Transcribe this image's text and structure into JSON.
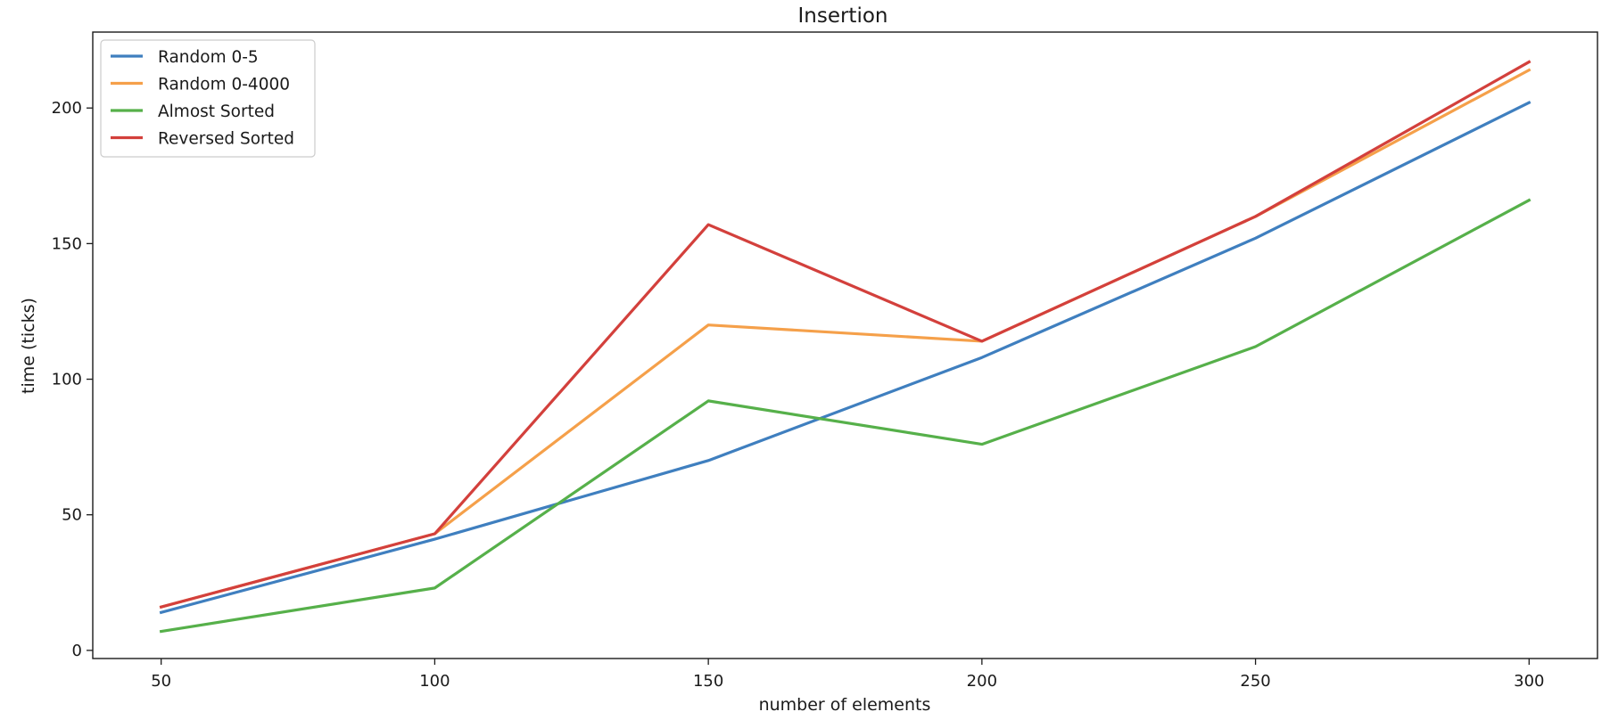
{
  "chart_data": {
    "type": "line",
    "title": "Insertion",
    "xlabel": "number of elements",
    "ylabel": "time (ticks)",
    "x": [
      50,
      100,
      150,
      200,
      250,
      300
    ],
    "xlim": [
      37.5,
      312.5
    ],
    "ylim": [
      -3,
      228
    ],
    "xticks": [
      "50",
      "100",
      "150",
      "200",
      "250",
      "300"
    ],
    "yticks": [
      "0",
      "50",
      "100",
      "150",
      "200"
    ],
    "grid": false,
    "legend_position": "top-left",
    "series": [
      {
        "name": "Random 0-5",
        "color": "#3f7fbf",
        "values": [
          14,
          41,
          70,
          108,
          152,
          202
        ]
      },
      {
        "name": "Random 0-4000",
        "color": "#f5a04a",
        "values": [
          16,
          43,
          120,
          114,
          160,
          214
        ]
      },
      {
        "name": "Almost Sorted",
        "color": "#56b04a",
        "values": [
          7,
          23,
          92,
          76,
          112,
          166
        ]
      },
      {
        "name": "Reversed Sorted",
        "color": "#d3403c",
        "values": [
          16,
          43,
          157,
          114,
          160,
          217
        ]
      }
    ]
  }
}
